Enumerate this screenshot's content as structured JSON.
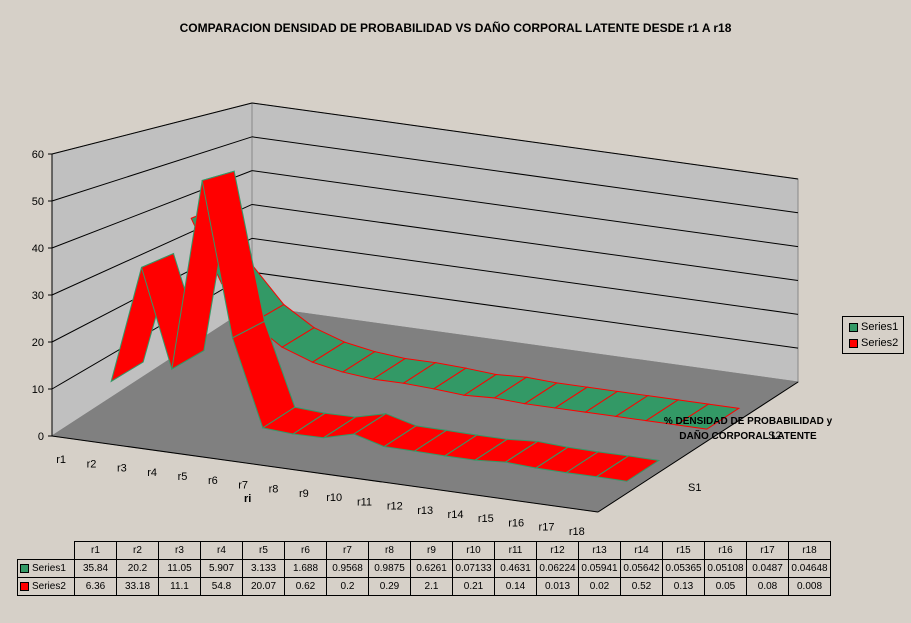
{
  "chart_data": {
    "type": "area",
    "title": "COMPARACION DENSIDAD DE PROBABILIDAD VS DAÑO CORPORAL LATENTE DESDE r1 A r18",
    "xlabel": "ri",
    "zlabel": "% DENSIDAD DE PROBABILIDAD y DAÑO CORPORAL LATENTE",
    "depth_categories": [
      "S1",
      "S2"
    ],
    "categories": [
      "r1",
      "r2",
      "r3",
      "r4",
      "r5",
      "r6",
      "r7",
      "r8",
      "r9",
      "r10",
      "r11",
      "r12",
      "r13",
      "r14",
      "r15",
      "r16",
      "r17",
      "r18"
    ],
    "ylim": [
      0,
      60
    ],
    "yticks": [
      0,
      10,
      20,
      30,
      40,
      50,
      60
    ],
    "legend_placement": "right",
    "grid": true,
    "series": [
      {
        "name": "Series1",
        "color": "#339966",
        "edge": "#ff0000",
        "values": [
          35.84,
          20.2,
          11.05,
          5.907,
          3.133,
          1.688,
          0.9568,
          0.9875,
          0.6261,
          0.07133,
          0.4631,
          0.06224,
          0.05941,
          0.05642,
          0.05365,
          0.05108,
          0.0487,
          0.04648
        ],
        "labels": [
          "35.84",
          "20.2",
          "11.05",
          "5.907",
          "3.133",
          "1.688",
          "0.9568",
          "0.9875",
          "0.6261",
          "0.07133",
          "0.4631",
          "0.06224",
          "0.05941",
          "0.05642",
          "0.05365",
          "0.05108",
          "0.0487",
          "0.04648"
        ]
      },
      {
        "name": "Series2",
        "color": "#ff0000",
        "edge": "#339966",
        "values": [
          6.36,
          33.18,
          11.1,
          54.8,
          20.07,
          0.62,
          0.2,
          0.29,
          2.1,
          0.21,
          0.14,
          0.013,
          0.02,
          0.52,
          0.13,
          0.05,
          0.08,
          0.008
        ],
        "labels": [
          "6.36",
          "33.18",
          "11.1",
          "54.8",
          "20.07",
          "0.62",
          "0.2",
          "0.29",
          "2.1",
          "0.21",
          "0.14",
          "0.013",
          "0.02",
          "0.52",
          "0.13",
          "0.05",
          "0.08",
          "0.008"
        ]
      }
    ]
  }
}
